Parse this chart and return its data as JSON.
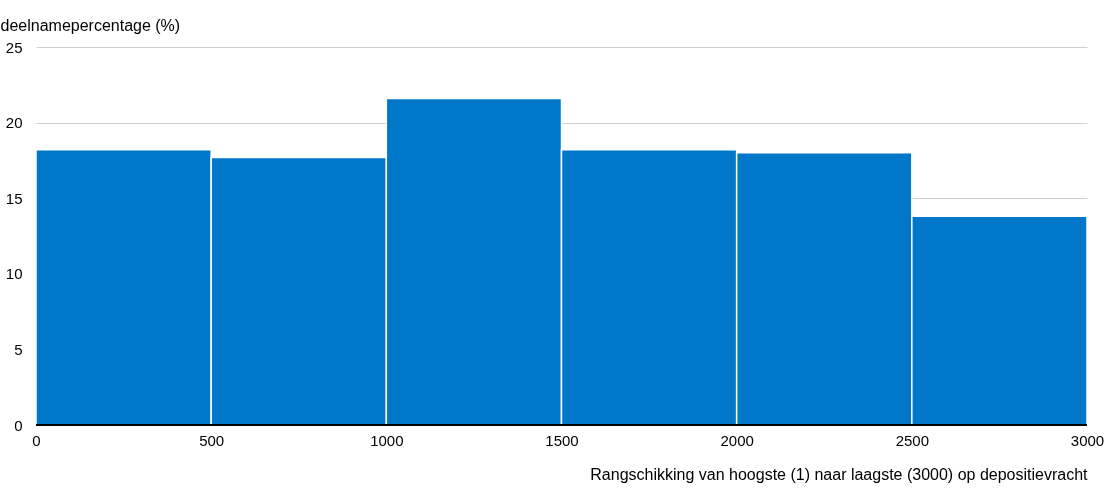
{
  "chart_data": {
    "type": "histogram",
    "xlabel": "Rangschikking van hoogste (1) naar laagste (3000) op depositievracht",
    "ylabel": "deelnamepercentage (%)",
    "bins": [
      0,
      500,
      1000,
      1500,
      2000,
      2500,
      3000
    ],
    "values": [
      18.2,
      17.7,
      21.6,
      18.2,
      18.0,
      13.8
    ],
    "color": "#0077c8",
    "xlim": [
      0,
      3000
    ],
    "xticks": [
      0,
      500,
      1000,
      1500,
      2000,
      2500,
      3000
    ],
    "ylim": [
      0,
      25
    ],
    "yticks": [
      0,
      5,
      10,
      15,
      20,
      25
    ],
    "grid": "y"
  }
}
